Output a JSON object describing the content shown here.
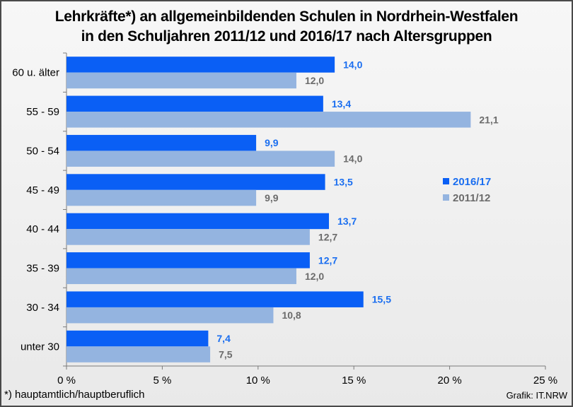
{
  "chart_data": {
    "type": "bar",
    "orientation": "horizontal",
    "title": "Lehrkräfte*) an allgemeinbildenden Schulen in Nordrhein-Westfalen",
    "subtitle": "in den Schuljahren 2011/12 und 2016/17 nach Altersgruppen",
    "categories": [
      "60 u. älter",
      "55 - 59",
      "50 - 54",
      "45 - 49",
      "40 - 44",
      "35 - 39",
      "30 - 34",
      "unter 30"
    ],
    "series": [
      {
        "name": "2016/17",
        "color": "#0a5ff5",
        "label_color": "#1a6ef0",
        "values": [
          14.0,
          13.4,
          9.9,
          13.5,
          13.7,
          12.7,
          15.5,
          7.4
        ],
        "labels": [
          "14,0",
          "13,4",
          "9,9",
          "13,5",
          "13,7",
          "12,7",
          "15,5",
          "7,4"
        ]
      },
      {
        "name": "2011/12",
        "color": "#94b4e0",
        "label_color": "#6b6b6b",
        "values": [
          12.0,
          21.1,
          14.0,
          9.9,
          12.7,
          12.0,
          10.8,
          7.5
        ],
        "labels": [
          "12,0",
          "21,1",
          "14,0",
          "9,9",
          "12,7",
          "12,0",
          "10,8",
          "7,5"
        ]
      }
    ],
    "xlim": [
      0,
      25
    ],
    "xticks": [
      0,
      5,
      10,
      15,
      20,
      25
    ],
    "xtick_labels": [
      "0 %",
      "5 %",
      "10 %",
      "15 %",
      "20 %",
      "25 %"
    ],
    "legend_position": "right",
    "grid": false
  },
  "footnote": "*) hauptamtlich/hauptberuflich",
  "source": "Grafik: IT.NRW"
}
